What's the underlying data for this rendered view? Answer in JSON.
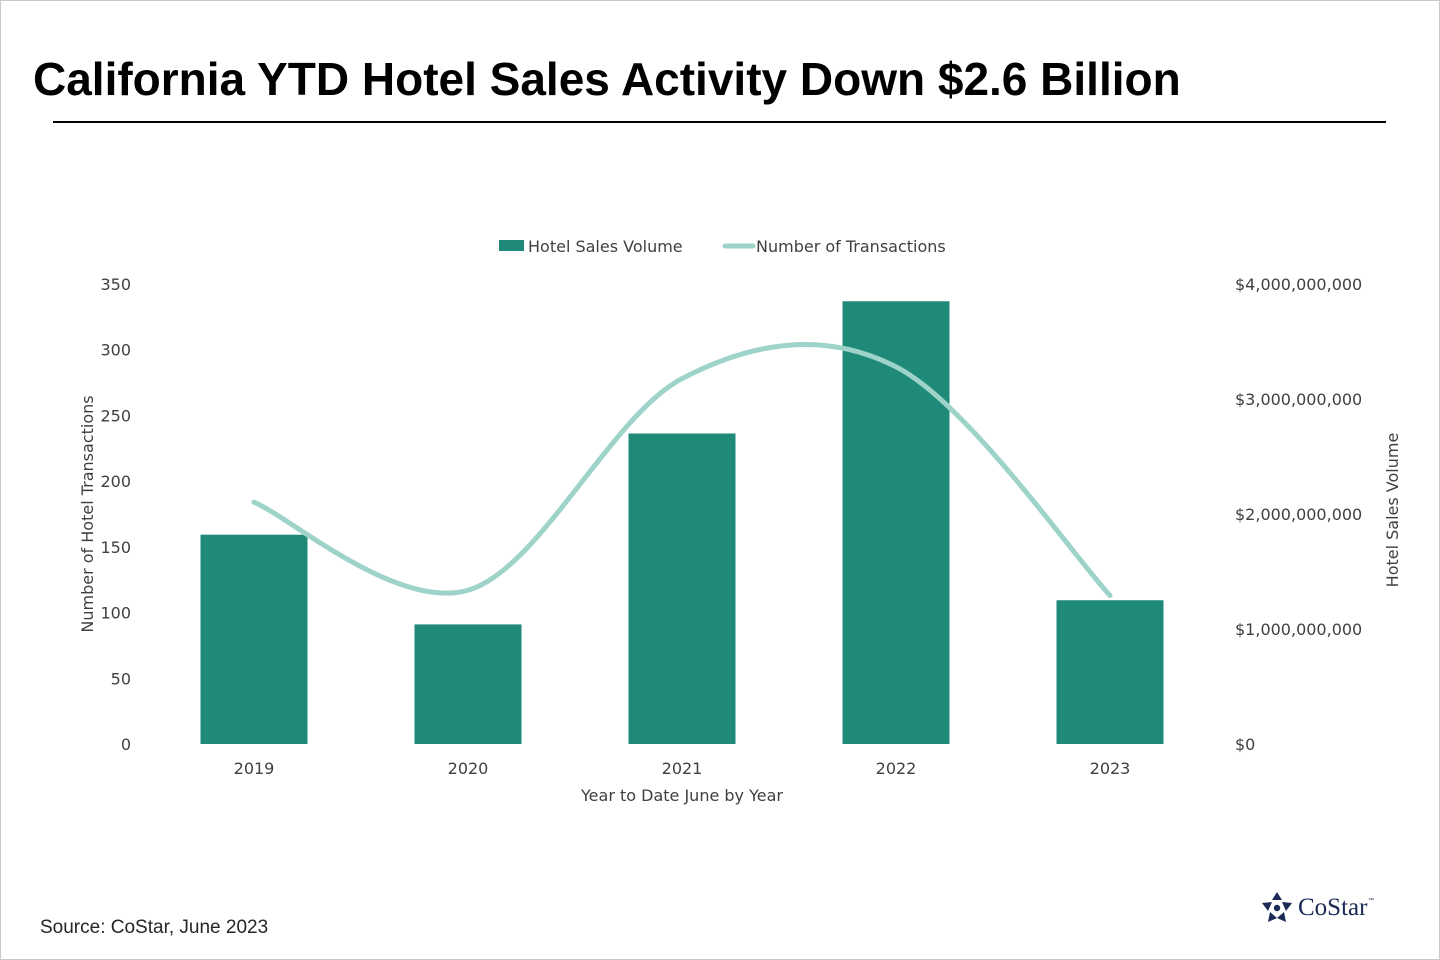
{
  "title": "California YTD Hotel Sales Activity Down $2.6 Billion",
  "source": "Source: CoStar, June 2023",
  "logo": {
    "text": "CoStar",
    "tm": "™"
  },
  "colors": {
    "bar": "#1f8a78",
    "line": "#9dd3c9",
    "text": "#404040",
    "logo": "#1b2a55"
  },
  "chart_data": {
    "type": "bar+line",
    "categories": [
      "2019",
      "2020",
      "2021",
      "2022",
      "2023"
    ],
    "series": [
      {
        "name": "Hotel Sales Volume",
        "type": "bar",
        "axis": "right",
        "values": [
          1820000000,
          1040000000,
          2700000000,
          3850000000,
          1250000000
        ]
      },
      {
        "name": "Number of Transactions",
        "type": "line",
        "axis": "left",
        "smooth": true,
        "values": [
          184,
          117,
          278,
          287,
          113
        ]
      }
    ],
    "xlabel": "Year to Date June by Year",
    "ylabel_left": "Number of  Hotel Transactions",
    "ylabel_right": "Hotel Sales Volume",
    "ylim_left": [
      0,
      350
    ],
    "ylim_right": [
      0,
      4000000000
    ],
    "yticks_left": [
      "0",
      "50",
      "100",
      "150",
      "200",
      "250",
      "300",
      "350"
    ],
    "yticks_right": [
      "$0",
      "$1,000,000,000",
      "$2,000,000,000",
      "$3,000,000,000",
      "$4,000,000,000"
    ],
    "legend_position": "top",
    "grid": false
  }
}
